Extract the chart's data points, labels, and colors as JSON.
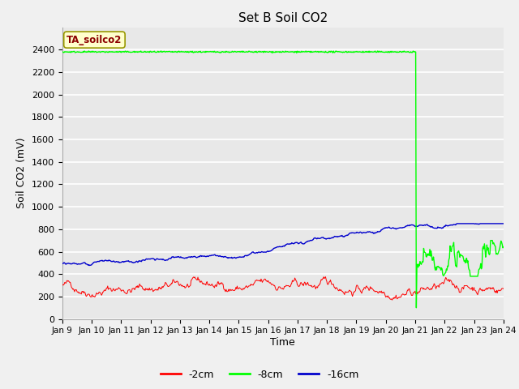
{
  "title": "Set B Soil CO2",
  "ylabel": "Soil CO2 (mV)",
  "xlabel": "Time",
  "annotation": "TA_soilco2",
  "annotation_color": "#8b0000",
  "annotation_bg": "#ffffcc",
  "annotation_border": "#999900",
  "ylim": [
    0,
    2600
  ],
  "yticks": [
    0,
    200,
    400,
    600,
    800,
    1000,
    1200,
    1400,
    1600,
    1800,
    2000,
    2200,
    2400
  ],
  "x_tick_labels": [
    "Jan 9",
    "Jan 10",
    "Jan 11",
    "Jan 12",
    "Jan 13",
    "Jan 14",
    "Jan 15",
    "Jan 16",
    "Jan 17",
    "Jan 18",
    "Jan 19",
    "Jan 20",
    "Jan 21",
    "Jan 22",
    "Jan 23",
    "Jan 24"
  ],
  "fig_bg_color": "#f0f0f0",
  "plot_bg_color": "#e8e8e8",
  "grid_color": "#ffffff",
  "line_colors": {
    "red": "#ff0000",
    "green": "#00ff00",
    "blue": "#0000cc"
  },
  "legend_labels": [
    "-2cm",
    "-8cm",
    "-16cm"
  ],
  "seed": 42,
  "total_days": 15,
  "drop_day": 12.0
}
